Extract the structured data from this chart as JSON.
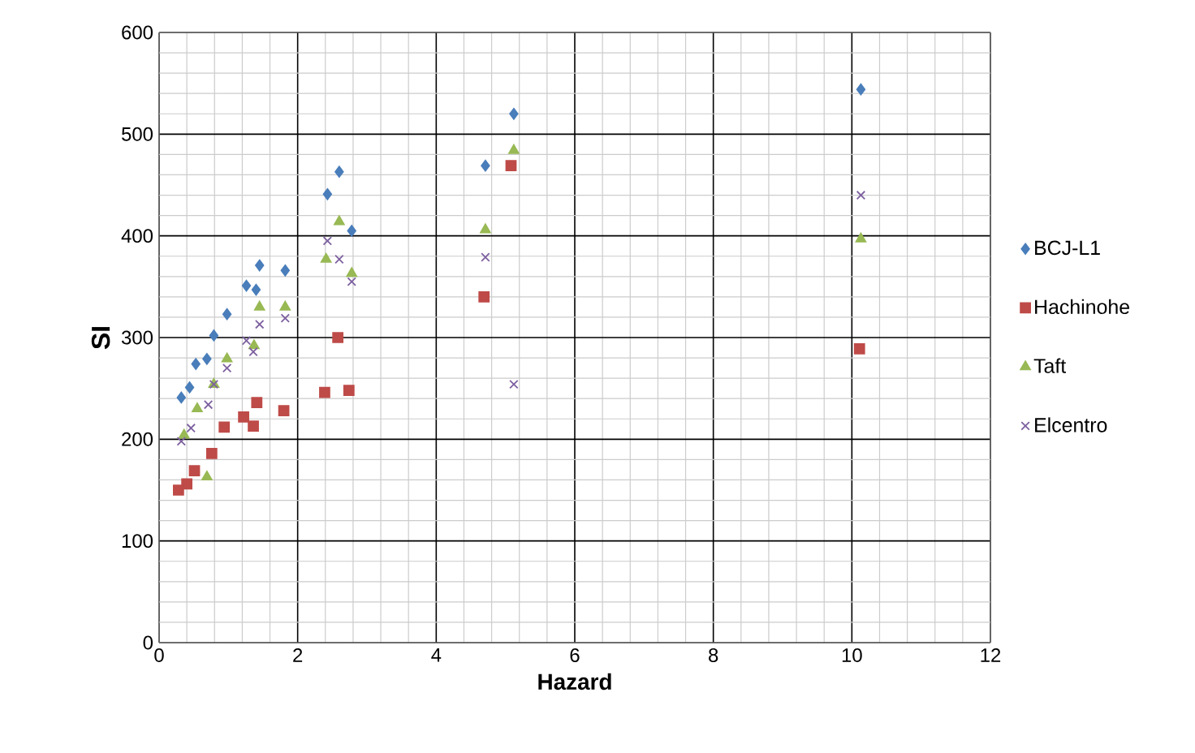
{
  "chart_data": {
    "type": "scatter",
    "xlabel": "Hazard",
    "ylabel": "SI",
    "xlim": [
      0,
      12
    ],
    "ylim": [
      0,
      600
    ],
    "xticks": [
      0,
      2,
      4,
      6,
      8,
      10,
      12
    ],
    "yticks": [
      0,
      100,
      200,
      300,
      400,
      500,
      600
    ],
    "grid": true,
    "legend": "right",
    "series": [
      {
        "name": "BCJ-L1",
        "color": "#4a7ebb",
        "marker": "diamond",
        "x": [
          2.6,
          2.43,
          2.78,
          1.45,
          1.82,
          1.26,
          1.4,
          0.98,
          0.79,
          0.69,
          0.53,
          0.44,
          0.32,
          5.12,
          4.71,
          10.13
        ],
        "values": [
          463,
          441,
          405,
          371,
          366,
          351,
          347,
          323,
          302,
          279,
          274,
          251,
          241,
          520,
          469,
          544
        ]
      },
      {
        "name": "Hachinohe",
        "color": "#be4b48",
        "marker": "square",
        "x": [
          2.58,
          2.39,
          2.74,
          1.41,
          1.8,
          1.22,
          1.36,
          0.94,
          0.76,
          0.51,
          0.4,
          0.28,
          5.08,
          4.69,
          10.11
        ],
        "values": [
          300,
          246,
          248,
          236,
          228,
          222,
          213,
          212,
          186,
          169,
          156,
          150,
          469,
          340,
          289
        ]
      },
      {
        "name": "Taft",
        "color": "#98b954",
        "marker": "triangle",
        "x": [
          2.6,
          2.41,
          2.78,
          1.45,
          1.82,
          1.37,
          0.98,
          0.79,
          0.55,
          0.36,
          0.69,
          5.12,
          4.71,
          10.13
        ],
        "values": [
          414,
          377,
          363,
          330,
          330,
          292,
          279,
          254,
          230,
          204,
          163,
          484,
          406,
          397
        ]
      },
      {
        "name": "Elcentro",
        "color": "#7d60a0",
        "marker": "cross",
        "x": [
          2.43,
          2.6,
          2.78,
          1.82,
          1.45,
          1.26,
          1.36,
          0.98,
          0.79,
          0.71,
          0.46,
          0.32,
          4.71,
          5.12,
          10.13
        ],
        "values": [
          395,
          377,
          355,
          319,
          313,
          297,
          286,
          270,
          254,
          234,
          211,
          198,
          379,
          254,
          440
        ]
      }
    ]
  }
}
